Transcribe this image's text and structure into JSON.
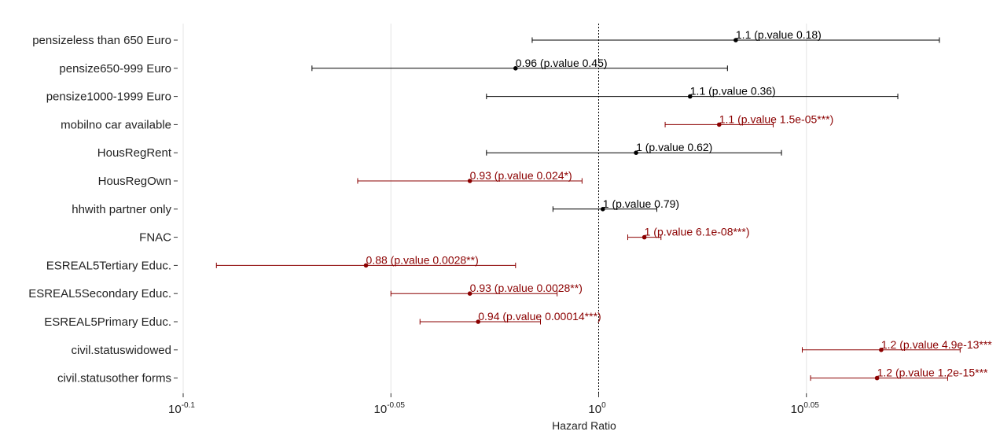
{
  "colors": {
    "significant": "#8b0000",
    "not_significant": "#000000",
    "grid": "#e5e5e5",
    "ref_line": "#000000"
  },
  "chart_data": {
    "type": "forest",
    "xlabel": "Hazard Ratio",
    "x_scale": "log10",
    "xlim_log10": [
      -0.1,
      0.1
    ],
    "reference_line": 1,
    "x_ticks": [
      {
        "base": "10",
        "exp": "-0.1",
        "log10": -0.1
      },
      {
        "base": "10",
        "exp": "-0.05",
        "log10": -0.05
      },
      {
        "base": "10",
        "exp": "0",
        "log10": 0
      },
      {
        "base": "10",
        "exp": "0.05",
        "log10": 0.05
      }
    ],
    "grid": true,
    "rows": [
      {
        "label": "pensizeless than 650 Euro",
        "estimate_log10": 0.033,
        "ci_log10": [
          -0.016,
          0.082
        ],
        "annotation": "1.1 (p.value 0.18)",
        "significant": false
      },
      {
        "label": "pensize650-999 Euro",
        "estimate_log10": -0.02,
        "ci_log10": [
          -0.069,
          0.031
        ],
        "annotation": "0.96 (p.value 0.45)",
        "significant": false
      },
      {
        "label": "pensize1000-1999 Euro",
        "estimate_log10": 0.022,
        "ci_log10": [
          -0.027,
          0.072
        ],
        "annotation": "1.1 (p.value 0.36)",
        "significant": false
      },
      {
        "label": "mobilno car available",
        "estimate_log10": 0.029,
        "ci_log10": [
          0.016,
          0.042
        ],
        "annotation": "1.1 (p.value 1.5e-05***)",
        "significant": true
      },
      {
        "label": "HousRegRent",
        "estimate_log10": 0.009,
        "ci_log10": [
          -0.027,
          0.044
        ],
        "annotation": "1 (p.value 0.62)",
        "significant": false
      },
      {
        "label": "HousRegOwn",
        "estimate_log10": -0.031,
        "ci_log10": [
          -0.058,
          -0.004
        ],
        "annotation": "0.93 (p.value 0.024*)",
        "significant": true
      },
      {
        "label": "hhwith partner only",
        "estimate_log10": 0.001,
        "ci_log10": [
          -0.011,
          0.014
        ],
        "annotation": "1 (p.value 0.79)",
        "significant": false
      },
      {
        "label": "FNAC",
        "estimate_log10": 0.011,
        "ci_log10": [
          0.007,
          0.015
        ],
        "annotation": "1 (p.value 6.1e-08***)",
        "significant": true
      },
      {
        "label": "ESREAL5Tertiary Educ.",
        "estimate_log10": -0.056,
        "ci_log10": [
          -0.092,
          -0.02
        ],
        "annotation": "0.88 (p.value 0.0028**)",
        "significant": true
      },
      {
        "label": "ESREAL5Secondary Educ.",
        "estimate_log10": -0.031,
        "ci_log10": [
          -0.05,
          -0.01
        ],
        "annotation": "0.93 (p.value 0.0028**)",
        "significant": true
      },
      {
        "label": "ESREAL5Primary Educ.",
        "estimate_log10": -0.029,
        "ci_log10": [
          -0.043,
          -0.014
        ],
        "annotation": "0.94 (p.value 0.00014***)",
        "significant": true
      },
      {
        "label": "civil.statuswidowed",
        "estimate_log10": 0.068,
        "ci_log10": [
          0.049,
          0.087
        ],
        "annotation": "1.2 (p.value 4.9e-13***",
        "significant": true
      },
      {
        "label": "civil.statusother forms",
        "estimate_log10": 0.067,
        "ci_log10": [
          0.051,
          0.084
        ],
        "annotation": "1.2 (p.value 1.2e-15***",
        "significant": true
      }
    ]
  }
}
